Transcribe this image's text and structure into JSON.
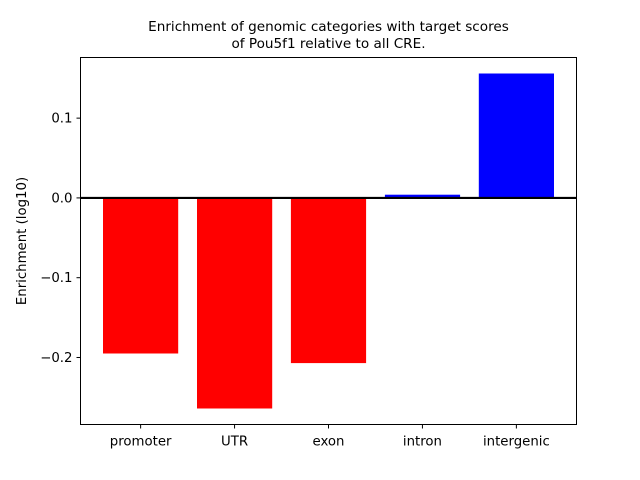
{
  "chart_data": {
    "type": "bar",
    "title": "Enrichment of genomic categories with target scores\nof Pou5f1 relative to all CRE.",
    "title_lines": [
      "Enrichment of genomic categories with target scores",
      "of Pou5f1 relative to all CRE."
    ],
    "xlabel": "",
    "ylabel": "Enrichment (log10)",
    "categories": [
      "promoter",
      "UTR",
      "exon",
      "intron",
      "intergenic"
    ],
    "values": [
      -0.195,
      -0.264,
      -0.207,
      0.004,
      0.156
    ],
    "bar_colors": [
      "#ff0000",
      "#ff0000",
      "#ff0000",
      "#0000ff",
      "#0000ff"
    ],
    "negative_color": "#ff0000",
    "positive_color": "#0000ff",
    "ylim": [
      -0.284,
      0.176
    ],
    "xlim": [
      -0.64,
      4.64
    ],
    "bar_width": 0.8,
    "yticks": [
      0.1,
      0.0,
      -0.1,
      -0.2
    ],
    "ytick_labels": [
      "0.1",
      "0.0",
      "−0.1",
      "−0.2"
    ],
    "zero_line": true,
    "grid": false,
    "legend": "none",
    "axis_color": "#000000",
    "background_color": "#ffffff"
  }
}
